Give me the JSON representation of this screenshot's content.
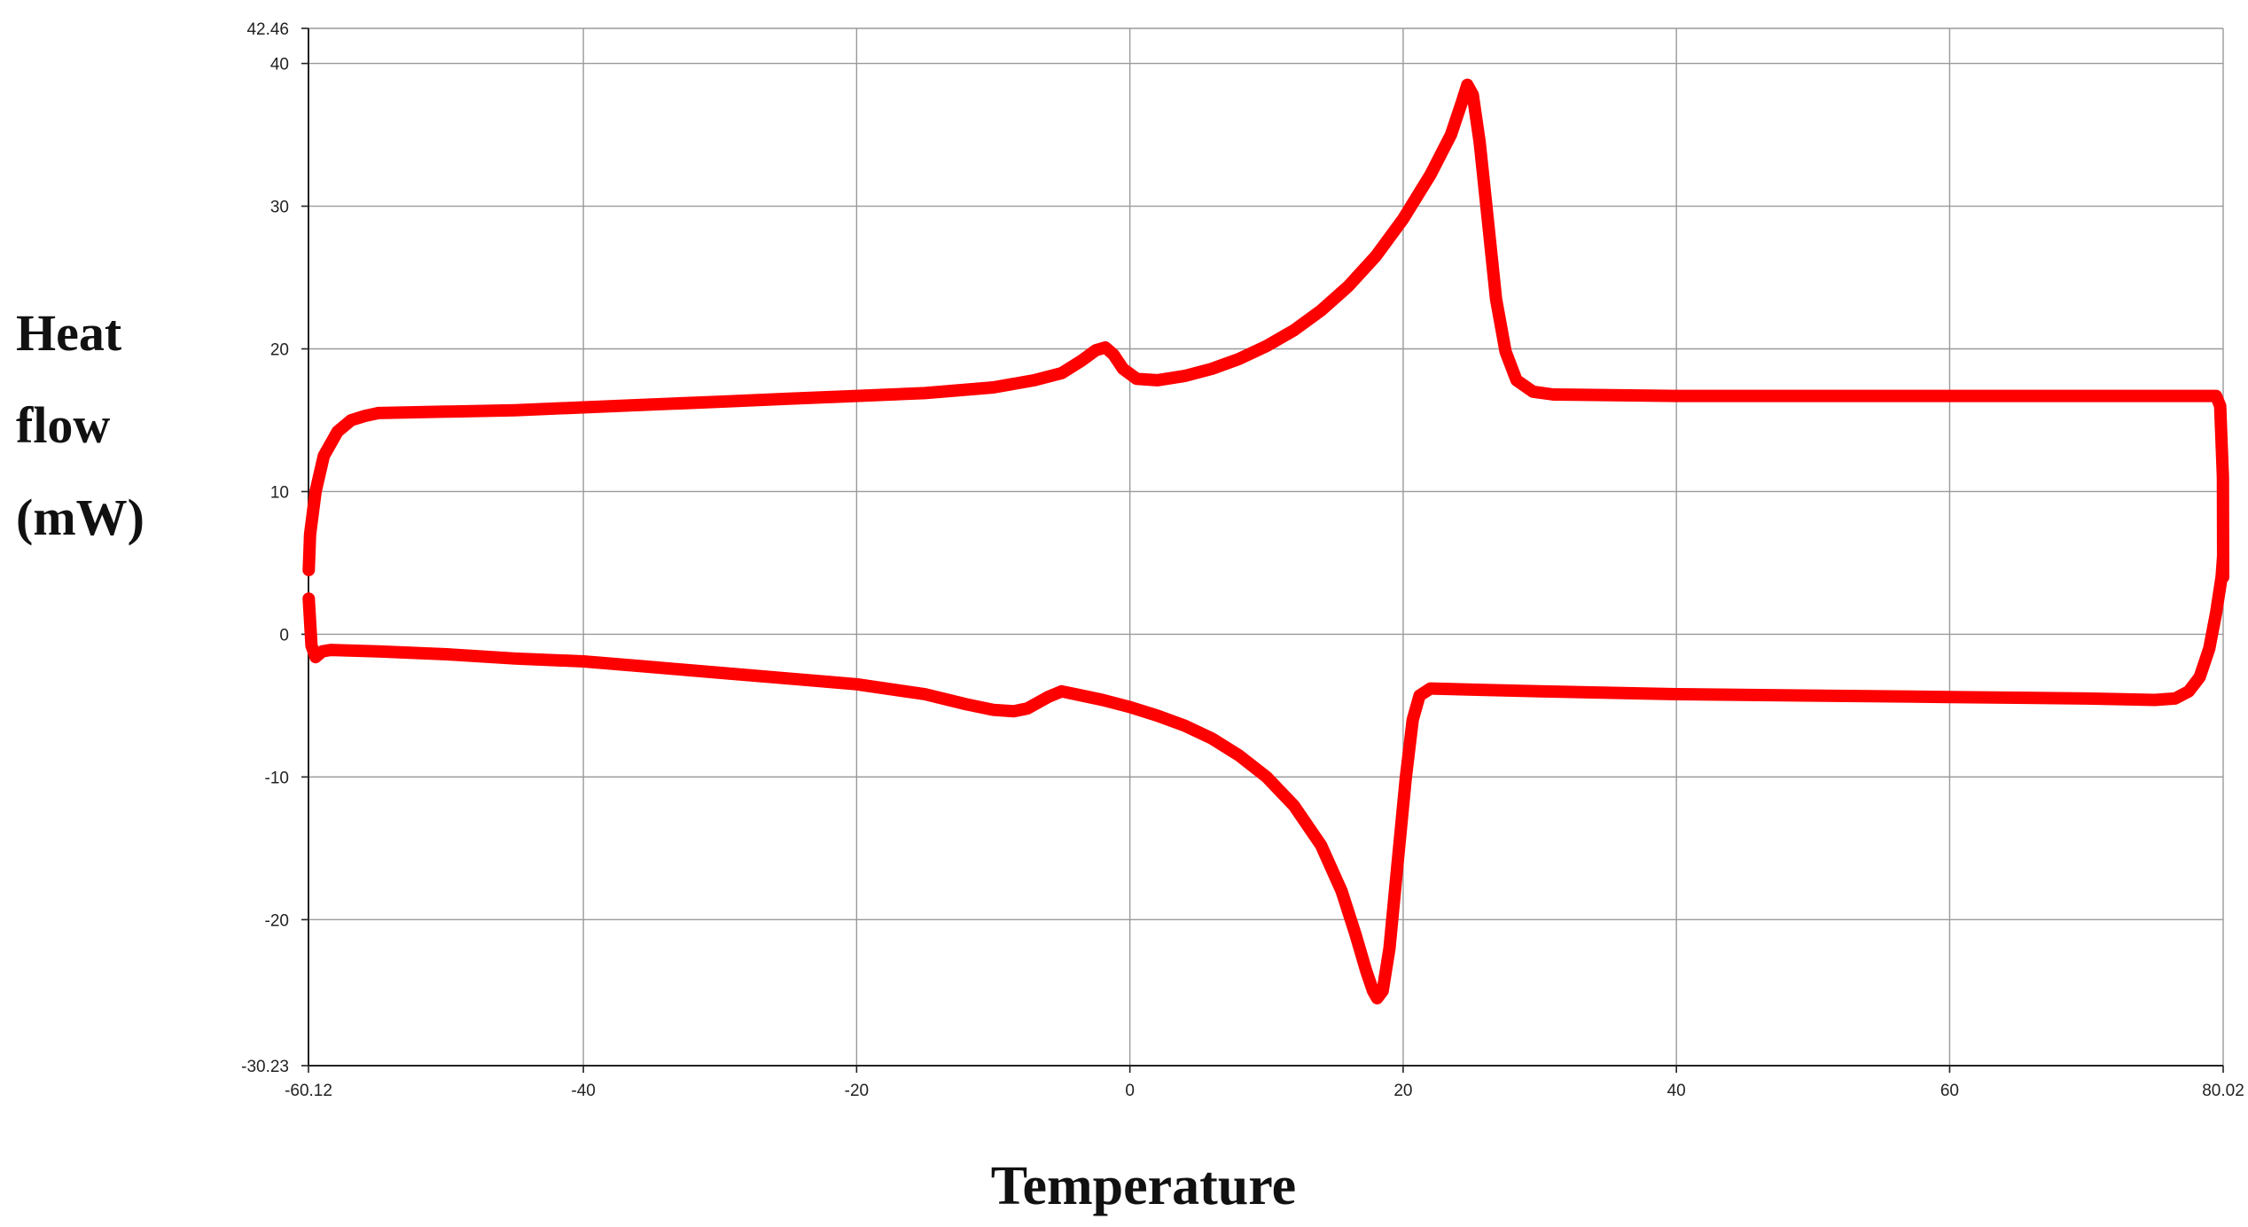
{
  "chart_data": {
    "type": "line",
    "title": "",
    "xlabel": "Temperature",
    "ylabel_lines": [
      "Heat",
      "flow",
      "(mW)"
    ],
    "xlim": [
      -60.12,
      80.02
    ],
    "ylim": [
      -30.23,
      42.46
    ],
    "x_ticks": [
      {
        "value": -60.12,
        "label": "-60.12"
      },
      {
        "value": -40,
        "label": "-40"
      },
      {
        "value": -20,
        "label": "-20"
      },
      {
        "value": 0,
        "label": "0"
      },
      {
        "value": 20,
        "label": "20"
      },
      {
        "value": 40,
        "label": "40"
      },
      {
        "value": 60,
        "label": "60"
      },
      {
        "value": 80.02,
        "label": "80.02"
      }
    ],
    "y_ticks": [
      {
        "value": 42.46,
        "label": "42.46"
      },
      {
        "value": 40,
        "label": "40"
      },
      {
        "value": 30,
        "label": "30"
      },
      {
        "value": 20,
        "label": "20"
      },
      {
        "value": 10,
        "label": "10"
      },
      {
        "value": 0,
        "label": "0"
      },
      {
        "value": -10,
        "label": "-10"
      },
      {
        "value": -20,
        "label": "-20"
      },
      {
        "value": -30.23,
        "label": "-30.23"
      }
    ],
    "grid": true,
    "color": "#ff0000",
    "series": [
      {
        "points": [
          [
            -60.1,
            4.5
          ],
          [
            -60.0,
            7.0
          ],
          [
            -59.6,
            10.0
          ],
          [
            -59.0,
            12.5
          ],
          [
            -58.0,
            14.2
          ],
          [
            -57.0,
            15.0
          ],
          [
            -56.0,
            15.3
          ],
          [
            -55.0,
            15.5
          ],
          [
            -50.0,
            15.6
          ],
          [
            -45.0,
            15.7
          ],
          [
            -40.0,
            15.9
          ],
          [
            -35.0,
            16.1
          ],
          [
            -30.0,
            16.3
          ],
          [
            -25.0,
            16.5
          ],
          [
            -20.0,
            16.7
          ],
          [
            -15.0,
            16.9
          ],
          [
            -10.0,
            17.3
          ],
          [
            -7.0,
            17.8
          ],
          [
            -5.0,
            18.3
          ],
          [
            -3.5,
            19.2
          ],
          [
            -2.5,
            19.9
          ],
          [
            -1.8,
            20.1
          ],
          [
            -1.2,
            19.6
          ],
          [
            -0.5,
            18.6
          ],
          [
            0.5,
            17.9
          ],
          [
            2.0,
            17.8
          ],
          [
            4.0,
            18.1
          ],
          [
            6.0,
            18.6
          ],
          [
            8.0,
            19.3
          ],
          [
            10.0,
            20.2
          ],
          [
            12.0,
            21.3
          ],
          [
            14.0,
            22.7
          ],
          [
            16.0,
            24.4
          ],
          [
            18.0,
            26.5
          ],
          [
            20.0,
            29.1
          ],
          [
            22.0,
            32.2
          ],
          [
            23.5,
            35.0
          ],
          [
            24.3,
            37.3
          ],
          [
            24.7,
            38.5
          ],
          [
            25.1,
            37.8
          ],
          [
            25.6,
            34.5
          ],
          [
            26.2,
            29.0
          ],
          [
            26.8,
            23.5
          ],
          [
            27.5,
            19.8
          ],
          [
            28.3,
            17.8
          ],
          [
            29.5,
            17.0
          ],
          [
            31.0,
            16.8
          ],
          [
            40.0,
            16.7
          ],
          [
            50.0,
            16.7
          ],
          [
            60.0,
            16.7
          ],
          [
            70.0,
            16.7
          ],
          [
            78.0,
            16.7
          ],
          [
            79.5,
            16.7
          ],
          [
            79.8,
            16.0
          ],
          [
            80.0,
            11.0
          ],
          [
            80.02,
            4.0
          ]
        ]
      },
      {
        "points": [
          [
            -60.1,
            2.5
          ],
          [
            -59.9,
            -0.8
          ],
          [
            -59.6,
            -1.6
          ],
          [
            -59.1,
            -1.2
          ],
          [
            -58.5,
            -1.1
          ],
          [
            -55.0,
            -1.2
          ],
          [
            -50.0,
            -1.4
          ],
          [
            -45.0,
            -1.7
          ],
          [
            -40.0,
            -1.9
          ],
          [
            -35.0,
            -2.3
          ],
          [
            -30.0,
            -2.7
          ],
          [
            -25.0,
            -3.1
          ],
          [
            -20.0,
            -3.5
          ],
          [
            -15.0,
            -4.2
          ],
          [
            -12.0,
            -4.9
          ],
          [
            -10.0,
            -5.3
          ],
          [
            -8.5,
            -5.4
          ],
          [
            -7.5,
            -5.2
          ],
          [
            -6.0,
            -4.4
          ],
          [
            -5.0,
            -4.0
          ],
          [
            -4.0,
            -4.2
          ],
          [
            -2.0,
            -4.6
          ],
          [
            0.0,
            -5.1
          ],
          [
            2.0,
            -5.7
          ],
          [
            4.0,
            -6.4
          ],
          [
            6.0,
            -7.3
          ],
          [
            8.0,
            -8.5
          ],
          [
            10.0,
            -10.0
          ],
          [
            12.0,
            -12.0
          ],
          [
            14.0,
            -14.8
          ],
          [
            15.5,
            -18.0
          ],
          [
            16.5,
            -21.0
          ],
          [
            17.3,
            -23.6
          ],
          [
            17.8,
            -25.0
          ],
          [
            18.1,
            -25.5
          ],
          [
            18.5,
            -25.0
          ],
          [
            19.0,
            -22.0
          ],
          [
            19.6,
            -16.0
          ],
          [
            20.2,
            -10.0
          ],
          [
            20.7,
            -6.0
          ],
          [
            21.2,
            -4.3
          ],
          [
            22.0,
            -3.8
          ],
          [
            30.0,
            -4.0
          ],
          [
            40.0,
            -4.2
          ],
          [
            50.0,
            -4.3
          ],
          [
            60.0,
            -4.4
          ],
          [
            70.0,
            -4.5
          ],
          [
            75.0,
            -4.6
          ],
          [
            76.5,
            -4.5
          ],
          [
            77.5,
            -4.0
          ],
          [
            78.3,
            -3.0
          ],
          [
            79.0,
            -1.0
          ],
          [
            79.5,
            1.5
          ],
          [
            79.9,
            4.0
          ],
          [
            80.02,
            5.5
          ]
        ]
      }
    ]
  }
}
